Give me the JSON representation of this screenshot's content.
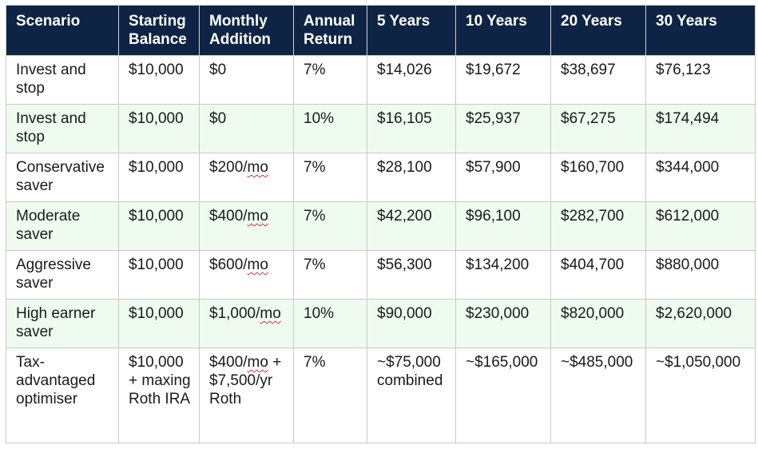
{
  "headers": [
    "Scenario",
    "Starting Balance",
    "Monthly Addition",
    "Annual Return",
    "5 Years",
    "10 Years",
    "20 Years",
    "30 Years"
  ],
  "rows": [
    [
      "Invest and stop",
      "$10,000",
      "$0",
      "7%",
      "$14,026",
      "$19,672",
      "$38,697",
      "$76,123"
    ],
    [
      "Invest and stop",
      "$10,000",
      "$0",
      "10%",
      "$16,105",
      "$25,937",
      "$67,275",
      "$174,494"
    ],
    [
      "Conservative saver",
      "$10,000",
      "$200/mo",
      "7%",
      "$28,100",
      "$57,900",
      "$160,700",
      "$344,000"
    ],
    [
      "Moderate saver",
      "$10,000",
      "$400/mo",
      "7%",
      "$42,200",
      "$96,100",
      "$282,700",
      "$612,000"
    ],
    [
      "Aggressive saver",
      "$10,000",
      "$600/mo",
      "7%",
      "$56,300",
      "$134,200",
      "$404,700",
      "$880,000"
    ],
    [
      "High earner saver",
      "$10,000",
      "$1,000/mo",
      "10%",
      "$90,000",
      "$230,000",
      "$820,000",
      "$2,620,000"
    ],
    [
      "Tax-advantaged optimiser",
      "$10,000 + maxing Roth IRA",
      "$400/mo + $7,500/yr Roth",
      "7%",
      "~$75,000 combined",
      "~$165,000",
      "~$485,000",
      "~$1,050,000"
    ]
  ]
}
